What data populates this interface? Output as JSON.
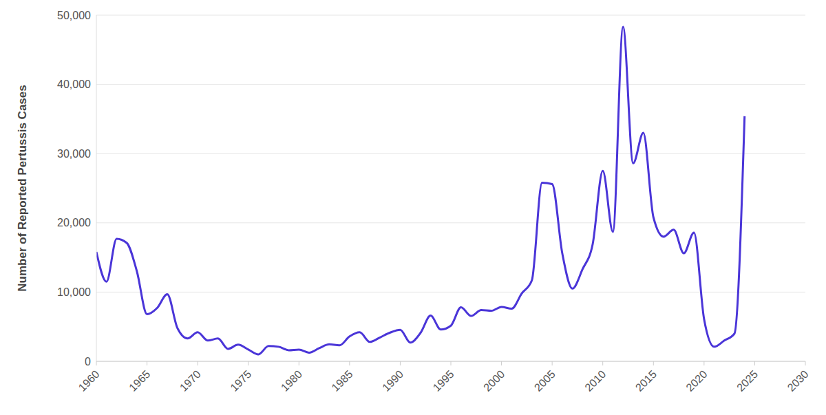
{
  "chart_data": {
    "type": "line",
    "y_label": "Number of Reported Pertussis Cases",
    "x": [
      1960,
      1961,
      1962,
      1963,
      1964,
      1965,
      1966,
      1967,
      1968,
      1969,
      1970,
      1971,
      1972,
      1973,
      1974,
      1975,
      1976,
      1977,
      1978,
      1979,
      1980,
      1981,
      1982,
      1983,
      1984,
      1985,
      1986,
      1987,
      1988,
      1989,
      1990,
      1991,
      1992,
      1993,
      1994,
      1995,
      1996,
      1997,
      1998,
      1999,
      2000,
      2001,
      2002,
      2003,
      2004,
      2005,
      2006,
      2007,
      2008,
      2009,
      2010,
      2011,
      2012,
      2013,
      2014,
      2015,
      2016,
      2017,
      2018,
      2019,
      2020,
      2021,
      2022,
      2023,
      2024
    ],
    "values": [
      15800,
      11500,
      17700,
      17100,
      13000,
      6800,
      7700,
      9700,
      4800,
      3300,
      4200,
      3000,
      3300,
      1800,
      2400,
      1700,
      1000,
      2200,
      2100,
      1600,
      1700,
      1250,
      1900,
      2450,
      2300,
      3600,
      4200,
      2800,
      3450,
      4150,
      4550,
      2700,
      4100,
      6600,
      4600,
      5150,
      7800,
      6550,
      7400,
      7300,
      7850,
      7600,
      9800,
      11700,
      25800,
      25600,
      15600,
      10500,
      13300,
      16900,
      27500,
      18700,
      48300,
      28600,
      33000,
      20800,
      18000,
      19000,
      15600,
      18600,
      6100,
      2100,
      3000,
      4000,
      35400
    ],
    "color": "#4a35d8",
    "xlim": [
      1960,
      2030
    ],
    "xticks": [
      1960,
      1965,
      1970,
      1975,
      1980,
      1985,
      1990,
      1995,
      2000,
      2005,
      2010,
      2015,
      2020,
      2025,
      2030
    ],
    "ylim": [
      0,
      50000
    ],
    "yticks": [
      0,
      {
        "value": 10000,
        "label": "10,000"
      },
      {
        "value": 20000,
        "label": "20,000"
      },
      {
        "value": 30000,
        "label": "30,000"
      },
      {
        "value": 40000,
        "label": "40,000"
      },
      {
        "value": 50000,
        "label": "50,000"
      }
    ],
    "grid": true
  }
}
